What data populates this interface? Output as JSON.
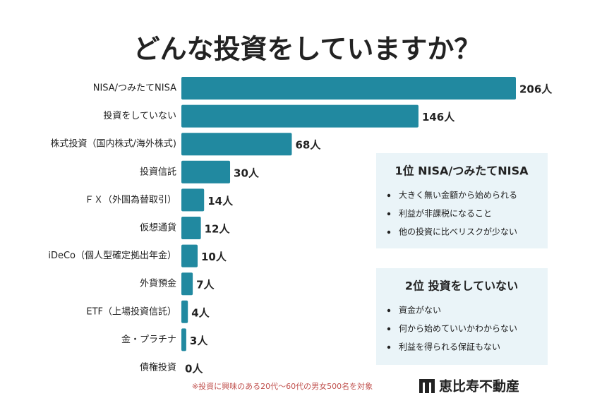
{
  "chart_data": {
    "type": "bar",
    "orientation": "horizontal",
    "title": "どんな投資をしていますか？",
    "categories": [
      "NISA/つみたてNISA",
      "投資をしていない",
      "株式投資（国内株式/海外株式)",
      "投資信託",
      "ＦＸ（外国為替取引）",
      "仮想通貨",
      "iDeCo（個人型確定拠出年金）",
      "外貨預金",
      "ETF（上場投資信託）",
      "金・プラチナ",
      "債権投資"
    ],
    "values": [
      206,
      146,
      68,
      30,
      14,
      12,
      10,
      7,
      4,
      3,
      0
    ],
    "value_labels": [
      "206人",
      "146人",
      "68人",
      "30人",
      "14人",
      "12人",
      "10人",
      "7人",
      "4人",
      "3人",
      "0人"
    ],
    "color": "#2189a0",
    "annotations": [
      {
        "title": "1位 NISA/つみたてNISA",
        "items": [
          "大きく無い金額から始められる",
          "利益が非課税になること",
          "他の投資に比べリスクが少ない"
        ]
      },
      {
        "title": "2位 投資をしていない",
        "items": [
          "資金がない",
          "何から始めていいかわからない",
          "利益を得られる保証もない"
        ]
      }
    ],
    "footnote": "※投資に興味のある20代〜60代の男女500名を対象",
    "logo": "恵比寿不動産"
  }
}
